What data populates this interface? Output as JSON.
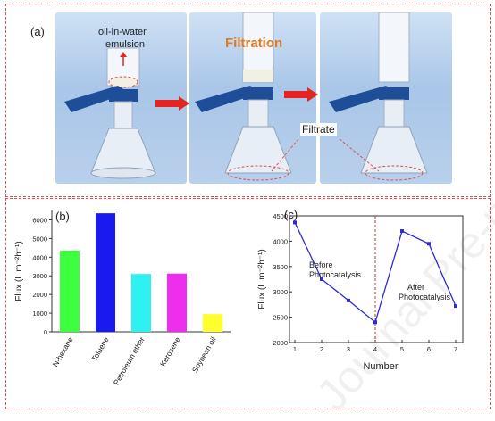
{
  "panel_a": {
    "label": "(a)",
    "emulsion_label_line1": "oil-in-water",
    "emulsion_label_line2": "emulsion",
    "filtration_label": "Filtration",
    "filtrate_label": "Filtrate",
    "colors": {
      "filtration": "#e07b22",
      "clip": "#1f4e99",
      "arrow": "#e52421"
    }
  },
  "chart_data": [
    {
      "panel_label": "(b)",
      "type": "bar",
      "categories": [
        "N-hexane",
        "Toluene",
        "Petroleum ether",
        "Kerosene",
        "Soybean oil"
      ],
      "values": [
        4350,
        6350,
        3100,
        3120,
        950
      ],
      "colors": [
        "#3dff3d",
        "#1a1aee",
        "#2ef2f2",
        "#ee2eee",
        "#ffff2e"
      ],
      "ylabel": "Flux (L m⁻²h⁻¹)",
      "ylim": [
        0,
        6500
      ],
      "yticks": [
        0,
        1000,
        2000,
        3000,
        4000,
        5000,
        6000
      ]
    },
    {
      "panel_label": "(c)",
      "type": "line",
      "x": [
        1,
        2,
        3,
        4,
        5,
        6,
        7
      ],
      "y": [
        4370,
        3250,
        2830,
        2400,
        4200,
        3950,
        2720
      ],
      "color": "#2b2bd6",
      "xlabel": "Number",
      "ylabel": "Flux (L m⁻²h⁻¹)",
      "ylim": [
        2000,
        4500
      ],
      "xlim": [
        1,
        7
      ],
      "yticks": [
        2000,
        2500,
        3000,
        3500,
        4000,
        4500
      ],
      "xticks": [
        1,
        2,
        3,
        4,
        5,
        6,
        7
      ],
      "annotations": [
        {
          "line1": "Before",
          "line2": "Photocatalysis"
        },
        {
          "line1": "After",
          "line2": "Photocatalysis"
        }
      ],
      "divider_x": 4
    }
  ],
  "watermark": "Journal Pre-proof"
}
